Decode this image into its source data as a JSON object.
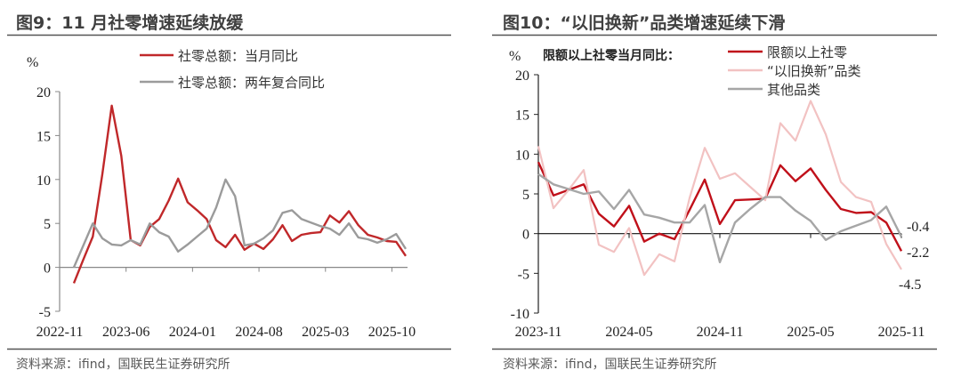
{
  "chart_data": [
    {
      "type": "line",
      "title": "图9：11 月社零增速延续放缓",
      "ylabel": "%",
      "ylim": [
        -5,
        20
      ],
      "yticks": [
        20,
        15,
        10,
        5,
        0,
        -5
      ],
      "xlim": [
        0,
        37
      ],
      "xticks": [
        {
          "x": 0,
          "label": "2022-11"
        },
        {
          "x": 7,
          "label": "2023-06"
        },
        {
          "x": 14,
          "label": "2024-01"
        },
        {
          "x": 21,
          "label": "2024-08"
        },
        {
          "x": 28,
          "label": "2025-03"
        },
        {
          "x": 35,
          "label": "2025-10"
        }
      ],
      "x_start_index": 1,
      "legend": "top-center",
      "series": [
        {
          "name": "社零总额：当月同比",
          "color": "#c0282a",
          "width": 2.4,
          "values": [
            -1.8,
            0.9,
            3.5,
            10.6,
            18.4,
            12.7,
            3.1,
            2.5,
            4.6,
            5.5,
            7.6,
            10.1,
            7.4,
            6.5,
            5.5,
            3.1,
            2.3,
            3.7,
            2.0,
            2.7,
            2.1,
            3.2,
            4.8,
            3.0,
            3.7,
            3.9,
            4.0,
            5.9,
            5.1,
            6.4,
            4.8,
            3.7,
            3.4,
            3.0,
            2.9,
            1.3
          ]
        },
        {
          "name": "社零总额：两年复合同比",
          "color": "#9b9b9b",
          "width": 2.4,
          "values": [
            0.0,
            2.5,
            5.0,
            3.3,
            2.6,
            2.5,
            3.1,
            2.6,
            5.0,
            4.0,
            3.5,
            1.8,
            2.6,
            3.5,
            4.4,
            6.8,
            10.0,
            8.1,
            2.5,
            2.7,
            3.3,
            4.2,
            6.2,
            6.5,
            5.5,
            5.1,
            4.7,
            4.4,
            3.7,
            5.0,
            3.4,
            3.2,
            2.8,
            3.2,
            3.8,
            2.1
          ]
        }
      ],
      "source": "资料来源：ifind，国联民生证券研究所"
    },
    {
      "type": "line",
      "title": "图10：“以旧换新”品类增速延续下滑",
      "subtitle": "限额以上社零当月同比：",
      "ylabel": "%",
      "ylim": [
        -10,
        20
      ],
      "yticks": [
        20,
        15,
        10,
        5,
        0,
        -5,
        -10
      ],
      "xlim": [
        0,
        24
      ],
      "xticks": [
        {
          "x": 0,
          "label": "2023-11"
        },
        {
          "x": 6,
          "label": "2024-05"
        },
        {
          "x": 12,
          "label": "2024-11"
        },
        {
          "x": 18,
          "label": "2025-05"
        },
        {
          "x": 24,
          "label": "2025-11"
        }
      ],
      "x_start_index": 0,
      "legend": "top-right",
      "series": [
        {
          "name": "限额以上社零",
          "color": "#c0101a",
          "width": 2.4,
          "values": [
            9.0,
            4.8,
            5.5,
            6.2,
            2.5,
            0.9,
            3.5,
            -1.0,
            0.0,
            -0.7,
            3.0,
            6.8,
            1.2,
            4.2,
            4.3,
            4.4,
            8.6,
            6.6,
            8.2,
            5.5,
            3.1,
            2.6,
            2.7,
            1.4,
            -2.2
          ]
        },
        {
          "name": "“以旧换新”品类",
          "color": "#f2c2c2",
          "width": 2.2,
          "values": [
            11.0,
            3.2,
            5.5,
            8.0,
            -1.4,
            -2.3,
            0.7,
            -5.2,
            -2.6,
            -3.5,
            4.5,
            10.8,
            6.9,
            7.6,
            5.9,
            4.2,
            13.9,
            11.7,
            16.7,
            12.5,
            6.5,
            4.6,
            4.0,
            -1.3,
            -4.5
          ]
        },
        {
          "name": "其他品类",
          "color": "#a6a6a6",
          "width": 2.4,
          "values": [
            7.5,
            6.2,
            5.6,
            5.0,
            5.3,
            3.1,
            5.5,
            2.4,
            2.0,
            1.4,
            1.4,
            3.6,
            -3.6,
            1.4,
            3.1,
            4.6,
            4.6,
            2.9,
            1.6,
            -0.8,
            0.3,
            1.0,
            1.7,
            3.4,
            -0.4
          ]
        }
      ],
      "annotations": [
        "-0.4",
        "-2.2",
        "-4.5"
      ],
      "source": "资料来源：ifind，国联民生证券研究所"
    }
  ]
}
